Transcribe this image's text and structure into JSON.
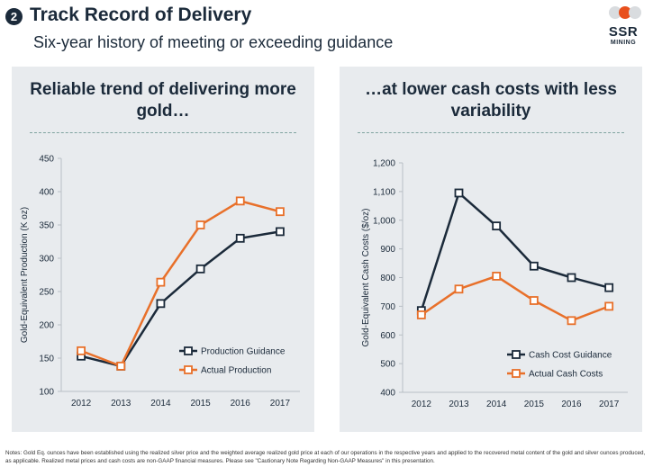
{
  "header": {
    "number": "2",
    "title": "Track Record of Delivery",
    "subtitle": "Six-year history of meeting or exceeding guidance"
  },
  "logo": {
    "text": "SSR",
    "subtext": "MINING",
    "dot_colors": [
      "#d9dcdf",
      "#e8501d",
      "#d9dcdf"
    ]
  },
  "colors": {
    "guidance": "#1b2a3a",
    "actual": "#e8702a",
    "panel_bg": "#e8ebee"
  },
  "chart_data": [
    {
      "type": "line",
      "title": "Reliable trend of delivering more gold…",
      "title_lines": [
        "Reliable trend of delivering more",
        "gold…"
      ],
      "ylabel": "Gold-Equivalent Production (K oz)",
      "categories": [
        "2012",
        "2013",
        "2014",
        "2015",
        "2016",
        "2017"
      ],
      "ylim": [
        100,
        450
      ],
      "yticks": [
        100,
        150,
        200,
        250,
        300,
        350,
        400,
        450
      ],
      "ytick_labels": [
        "100",
        "150",
        "200",
        "250",
        "300",
        "350",
        "400",
        "450"
      ],
      "legend_position": "bottom-right",
      "series": [
        {
          "name": "Production Guidance",
          "values": [
            153,
            138,
            232,
            284,
            330,
            340
          ]
        },
        {
          "name": "Actual Production",
          "values": [
            161,
            138,
            264,
            350,
            386,
            370
          ]
        }
      ]
    },
    {
      "type": "line",
      "title": "…at lower cash costs with less variability",
      "title_lines": [
        "…at lower cash costs with less",
        "variability"
      ],
      "ylabel": "Gold-Equivalent Cash Costs ($/oz)",
      "categories": [
        "2012",
        "2013",
        "2014",
        "2015",
        "2016",
        "2017"
      ],
      "ylim": [
        400,
        1200
      ],
      "yticks": [
        400,
        500,
        600,
        700,
        800,
        900,
        1000,
        1100,
        1200
      ],
      "ytick_labels": [
        "400",
        "500",
        "600",
        "700",
        "800",
        "900",
        "1,000",
        "1,100",
        "1,200"
      ],
      "legend_position": "bottom-right",
      "series": [
        {
          "name": "Cash Cost Guidance",
          "values": [
            685,
            1095,
            980,
            840,
            800,
            765
          ]
        },
        {
          "name": "Actual Cash Costs",
          "values": [
            670,
            760,
            805,
            720,
            650,
            700
          ]
        }
      ]
    }
  ],
  "notes": "Notes: Gold Eq. ounces have been established using the realized silver price and the weighted average realized gold price at each of our operations in the respective years and applied to the recovered metal content of the gold and silver ounces produced, as applicable. Realized metal prices and cash costs are non-GAAP financial measures. Please see \"Cautionary Note Regarding Non-GAAP Measures\" in this presentation."
}
